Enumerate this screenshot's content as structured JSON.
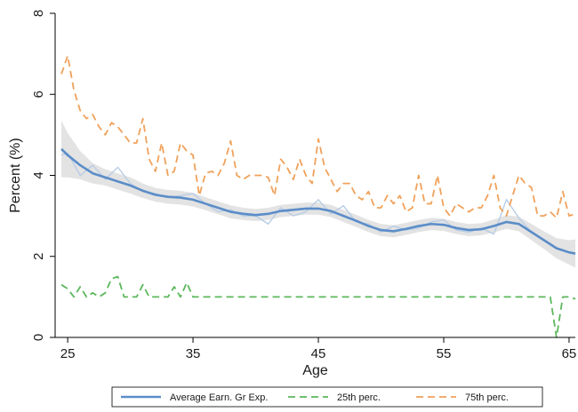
{
  "chart_data": {
    "type": "line",
    "xlabel": "Age",
    "ylabel": "Percent (%)",
    "xlim": [
      24,
      65.5
    ],
    "ylim": [
      0,
      8
    ],
    "x_ticks": [
      25,
      35,
      45,
      55,
      65
    ],
    "y_ticks": [
      0,
      2,
      4,
      6,
      8
    ],
    "grid": false,
    "legend_position": "bottom",
    "series": [
      {
        "name": "Average Earn. Gr Exp.",
        "style": "solid-smooth-with-ci",
        "color": "#5b8dc8",
        "x": [
          24.5,
          25,
          26,
          27,
          28,
          29,
          30,
          31,
          32,
          33,
          34,
          35,
          36,
          37,
          38,
          39,
          40,
          41,
          42,
          43,
          44,
          45,
          46,
          47,
          48,
          49,
          50,
          51,
          52,
          53,
          54,
          55,
          56,
          57,
          58,
          59,
          60,
          61,
          62,
          63,
          64,
          65,
          65.5
        ],
        "values": [
          4.65,
          4.5,
          4.25,
          4.05,
          3.95,
          3.85,
          3.75,
          3.62,
          3.52,
          3.47,
          3.45,
          3.4,
          3.3,
          3.2,
          3.1,
          3.05,
          3.02,
          3.05,
          3.12,
          3.15,
          3.18,
          3.18,
          3.12,
          3.0,
          2.88,
          2.75,
          2.65,
          2.62,
          2.68,
          2.75,
          2.8,
          2.78,
          2.7,
          2.65,
          2.67,
          2.75,
          2.85,
          2.8,
          2.6,
          2.4,
          2.2,
          2.1,
          2.07
        ],
        "ci_half_width": [
          0.7,
          0.55,
          0.35,
          0.25,
          0.2,
          0.2,
          0.2,
          0.18,
          0.17,
          0.17,
          0.17,
          0.17,
          0.16,
          0.16,
          0.16,
          0.15,
          0.15,
          0.15,
          0.15,
          0.15,
          0.15,
          0.15,
          0.15,
          0.15,
          0.15,
          0.15,
          0.15,
          0.15,
          0.15,
          0.15,
          0.15,
          0.15,
          0.15,
          0.15,
          0.15,
          0.16,
          0.17,
          0.18,
          0.2,
          0.22,
          0.25,
          0.3,
          0.35
        ],
        "raw_values": [
          4.5,
          4.55,
          4.0,
          4.25,
          3.9,
          4.2,
          3.8,
          3.6,
          3.55,
          3.45,
          3.5,
          3.55,
          3.3,
          3.1,
          3.15,
          3.0,
          3.0,
          2.8,
          3.2,
          3.0,
          3.1,
          3.4,
          3.05,
          3.25,
          2.85,
          2.8,
          2.6,
          2.75,
          2.65,
          2.7,
          2.85,
          2.9,
          2.65,
          2.6,
          2.7,
          2.55,
          3.4,
          2.95,
          2.6,
          2.4,
          2.2,
          2.1,
          2.05
        ]
      },
      {
        "name": "25th perc.",
        "style": "dashed",
        "color": "#5cb85c",
        "x": [
          24.5,
          25,
          25.5,
          26,
          26.5,
          27,
          27.5,
          28,
          28.5,
          29,
          29.5,
          30,
          30.5,
          31,
          31.5,
          32,
          32.5,
          33,
          33.5,
          34,
          34.5,
          35,
          40,
          45,
          50,
          55,
          60,
          62,
          63,
          63.5,
          64,
          64.5,
          65,
          65.5
        ],
        "values": [
          1.3,
          1.2,
          1.0,
          1.25,
          1.0,
          1.1,
          1.0,
          1.1,
          1.45,
          1.5,
          1.0,
          1.0,
          1.0,
          1.3,
          1.0,
          1.0,
          1.0,
          1.0,
          1.25,
          1.0,
          1.35,
          1.0,
          1.0,
          1.0,
          1.0,
          1.0,
          1.0,
          1.0,
          1.0,
          1.0,
          0.0,
          1.0,
          1.0,
          0.95
        ]
      },
      {
        "name": "75th perc.",
        "style": "dashed",
        "color": "#f0a15a",
        "x": [
          24.5,
          25,
          25.5,
          26,
          26.5,
          27,
          27.5,
          28,
          28.5,
          29,
          29.5,
          30,
          30.5,
          31,
          31.5,
          32,
          32.5,
          33,
          33.5,
          34,
          34.5,
          35,
          35.5,
          36,
          36.5,
          37,
          37.5,
          38,
          38.5,
          39,
          39.5,
          40,
          40.5,
          41,
          41.5,
          42,
          42.5,
          43,
          43.5,
          44,
          44.5,
          45,
          45.5,
          46,
          46.5,
          47,
          47.5,
          48,
          48.5,
          49,
          49.5,
          50,
          50.5,
          51,
          51.5,
          52,
          52.5,
          53,
          53.5,
          54,
          54.5,
          55,
          55.5,
          56,
          56.5,
          57,
          57.5,
          58,
          58.5,
          59,
          59.5,
          60,
          60.5,
          61,
          61.5,
          62,
          62.5,
          63,
          63.5,
          64,
          64.5,
          65,
          65.5
        ],
        "values": [
          6.5,
          6.95,
          6.1,
          5.6,
          5.4,
          5.5,
          5.2,
          5.0,
          5.3,
          5.2,
          5.0,
          4.8,
          4.8,
          5.4,
          4.4,
          4.1,
          4.8,
          4.0,
          4.1,
          4.8,
          4.6,
          4.5,
          3.5,
          4.05,
          4.1,
          4.0,
          4.3,
          4.85,
          4.0,
          3.9,
          4.0,
          4.0,
          4.0,
          3.95,
          3.5,
          4.4,
          4.2,
          3.9,
          4.4,
          4.0,
          3.8,
          4.9,
          4.2,
          3.9,
          3.6,
          3.8,
          3.8,
          3.5,
          3.4,
          3.6,
          3.2,
          3.2,
          3.5,
          3.3,
          3.5,
          3.1,
          3.2,
          4.0,
          3.3,
          3.3,
          4.0,
          3.2,
          3.0,
          3.3,
          3.2,
          3.1,
          3.2,
          3.2,
          3.5,
          4.0,
          3.2,
          3.0,
          3.5,
          4.0,
          3.8,
          3.7,
          3.0,
          3.0,
          3.1,
          2.95,
          3.6,
          3.0,
          3.05
        ]
      }
    ]
  }
}
